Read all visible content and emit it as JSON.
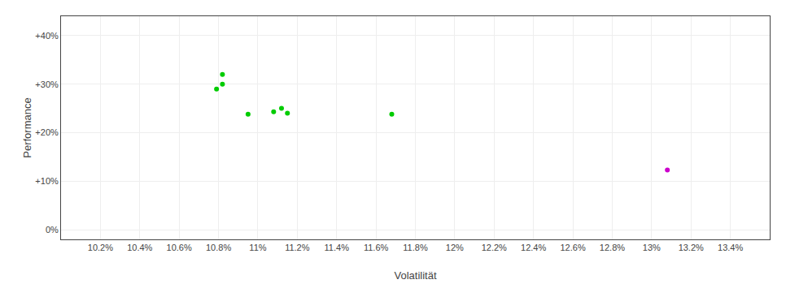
{
  "chart_data": {
    "type": "scatter",
    "xlabel": "Volatilität",
    "ylabel": "Performance",
    "series": [
      {
        "color": "#00cc00",
        "x": [
          0.1082,
          0.1082,
          0.1079,
          0.1095,
          0.1108,
          0.1112,
          0.1115,
          0.1168
        ],
        "values": [
          0.32,
          0.3,
          0.29,
          0.238,
          0.243,
          0.25,
          0.24,
          0.238
        ]
      },
      {
        "color": "#cc00cc",
        "x": [
          0.1308
        ],
        "values": [
          0.123
        ]
      }
    ],
    "xlim": [
      0.1,
      0.136
    ],
    "ylim": [
      -0.02,
      0.44
    ],
    "xticks": [
      {
        "value": 0.102,
        "label": "10.2%"
      },
      {
        "value": 0.104,
        "label": "10.4%"
      },
      {
        "value": 0.106,
        "label": "10.6%"
      },
      {
        "value": 0.108,
        "label": "10.8%"
      },
      {
        "value": 0.11,
        "label": "11%"
      },
      {
        "value": 0.112,
        "label": "11.2%"
      },
      {
        "value": 0.114,
        "label": "11.4%"
      },
      {
        "value": 0.116,
        "label": "11.6%"
      },
      {
        "value": 0.118,
        "label": "11.8%"
      },
      {
        "value": 0.12,
        "label": "12%"
      },
      {
        "value": 0.122,
        "label": "12.2%"
      },
      {
        "value": 0.124,
        "label": "12.4%"
      },
      {
        "value": 0.126,
        "label": "12.6%"
      },
      {
        "value": 0.128,
        "label": "12.8%"
      },
      {
        "value": 0.13,
        "label": "13%"
      },
      {
        "value": 0.132,
        "label": "13.2%"
      },
      {
        "value": 0.134,
        "label": "13.4%"
      }
    ],
    "yticks": [
      {
        "value": 0.0,
        "label": "0%"
      },
      {
        "value": 0.1,
        "label": "+10%"
      },
      {
        "value": 0.2,
        "label": "+20%"
      },
      {
        "value": 0.3,
        "label": "+30%"
      },
      {
        "value": 0.4,
        "label": "+40%"
      }
    ],
    "grid": true
  }
}
